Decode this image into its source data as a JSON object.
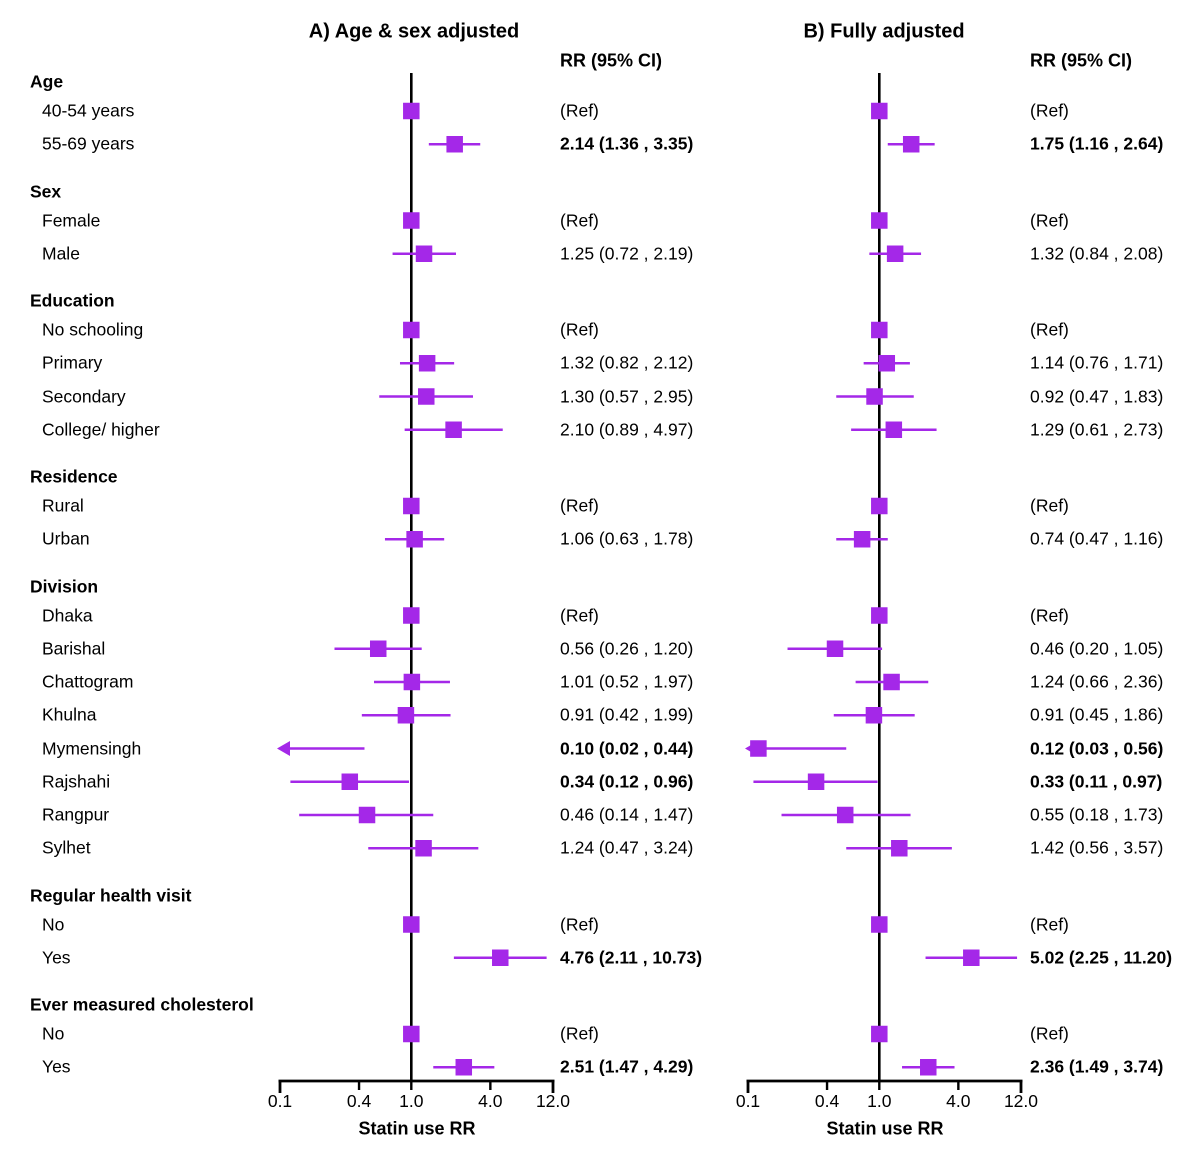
{
  "chart_data": {
    "type": "forest",
    "x_scale": "log",
    "x_range": [
      0.1,
      12.0
    ],
    "accent_color": "#A428E8",
    "axis_color": "#000000",
    "x_ticks": [
      {
        "v": 0.1,
        "label": "0.1"
      },
      {
        "v": 0.4,
        "label": "0.4"
      },
      {
        "v": 1.0,
        "label": "1.0"
      },
      {
        "v": 4.0,
        "label": "4.0"
      },
      {
        "v": 12.0,
        "label": "12.0"
      }
    ],
    "panels": [
      {
        "key": "a",
        "title": "A) Age & sex adjusted",
        "rr_header": "RR (95% CI)",
        "xlabel": "Statin use RR"
      },
      {
        "key": "b",
        "title": "B) Fully adjusted",
        "rr_header": "RR (95% CI)",
        "xlabel": "Statin use RR"
      }
    ],
    "rows": [
      {
        "type": "header",
        "label": "Age"
      },
      {
        "type": "item",
        "label": "40-54 years",
        "a": {
          "text": "(Ref)",
          "ref": true
        },
        "b": {
          "text": "(Ref)",
          "ref": true
        }
      },
      {
        "type": "item",
        "label": "55-69 years",
        "a": {
          "rr": 2.14,
          "lo": 1.36,
          "hi": 3.35,
          "text": "2.14 (1.36 , 3.35)",
          "bold": true
        },
        "b": {
          "rr": 1.75,
          "lo": 1.16,
          "hi": 2.64,
          "text": "1.75 (1.16 , 2.64)",
          "bold": true
        }
      },
      {
        "type": "header",
        "label": "Sex"
      },
      {
        "type": "item",
        "label": "Female",
        "a": {
          "text": "(Ref)",
          "ref": true
        },
        "b": {
          "text": "(Ref)",
          "ref": true
        }
      },
      {
        "type": "item",
        "label": "Male",
        "a": {
          "rr": 1.25,
          "lo": 0.72,
          "hi": 2.19,
          "text": "1.25 (0.72 , 2.19)"
        },
        "b": {
          "rr": 1.32,
          "lo": 0.84,
          "hi": 2.08,
          "text": "1.32 (0.84 , 2.08)"
        }
      },
      {
        "type": "header",
        "label": "Education"
      },
      {
        "type": "item",
        "label": "No schooling",
        "a": {
          "text": "(Ref)",
          "ref": true
        },
        "b": {
          "text": "(Ref)",
          "ref": true
        }
      },
      {
        "type": "item",
        "label": "Primary",
        "a": {
          "rr": 1.32,
          "lo": 0.82,
          "hi": 2.12,
          "text": "1.32 (0.82 , 2.12)"
        },
        "b": {
          "rr": 1.14,
          "lo": 0.76,
          "hi": 1.71,
          "text": "1.14 (0.76 , 1.71)"
        }
      },
      {
        "type": "item",
        "label": "Secondary",
        "a": {
          "rr": 1.3,
          "lo": 0.57,
          "hi": 2.95,
          "text": "1.30 (0.57 , 2.95)"
        },
        "b": {
          "rr": 0.92,
          "lo": 0.47,
          "hi": 1.83,
          "text": "0.92 (0.47 , 1.83)"
        }
      },
      {
        "type": "item",
        "label": "College/ higher",
        "a": {
          "rr": 2.1,
          "lo": 0.89,
          "hi": 4.97,
          "text": "2.10 (0.89 , 4.97)"
        },
        "b": {
          "rr": 1.29,
          "lo": 0.61,
          "hi": 2.73,
          "text": "1.29 (0.61 , 2.73)"
        }
      },
      {
        "type": "header",
        "label": "Residence"
      },
      {
        "type": "item",
        "label": "Rural",
        "a": {
          "text": "(Ref)",
          "ref": true
        },
        "b": {
          "text": "(Ref)",
          "ref": true
        }
      },
      {
        "type": "item",
        "label": "Urban",
        "a": {
          "rr": 1.06,
          "lo": 0.63,
          "hi": 1.78,
          "text": "1.06 (0.63 , 1.78)"
        },
        "b": {
          "rr": 0.74,
          "lo": 0.47,
          "hi": 1.16,
          "text": "0.74 (0.47 , 1.16)"
        }
      },
      {
        "type": "header",
        "label": "Division"
      },
      {
        "type": "item",
        "label": "Dhaka",
        "a": {
          "text": "(Ref)",
          "ref": true
        },
        "b": {
          "text": "(Ref)",
          "ref": true
        }
      },
      {
        "type": "item",
        "label": "Barishal",
        "a": {
          "rr": 0.56,
          "lo": 0.26,
          "hi": 1.2,
          "text": "0.56 (0.26 , 1.20)"
        },
        "b": {
          "rr": 0.46,
          "lo": 0.2,
          "hi": 1.05,
          "text": "0.46 (0.20 , 1.05)"
        }
      },
      {
        "type": "item",
        "label": "Chattogram",
        "a": {
          "rr": 1.01,
          "lo": 0.52,
          "hi": 1.97,
          "text": "1.01 (0.52 , 1.97)"
        },
        "b": {
          "rr": 1.24,
          "lo": 0.66,
          "hi": 2.36,
          "text": "1.24 (0.66 , 2.36)"
        }
      },
      {
        "type": "item",
        "label": "Khulna",
        "a": {
          "rr": 0.91,
          "lo": 0.42,
          "hi": 1.99,
          "text": "0.91 (0.42 , 1.99)"
        },
        "b": {
          "rr": 0.91,
          "lo": 0.45,
          "hi": 1.86,
          "text": "0.91 (0.45 , 1.86)"
        }
      },
      {
        "type": "item",
        "label": "Mymensingh",
        "a": {
          "rr": 0.1,
          "lo": 0.02,
          "hi": 0.44,
          "text": "0.10 (0.02 , 0.44)",
          "bold": true,
          "arrow_left": true
        },
        "b": {
          "rr": 0.12,
          "lo": 0.03,
          "hi": 0.56,
          "text": "0.12 (0.03 , 0.56)",
          "bold": true,
          "arrow_left": true
        }
      },
      {
        "type": "item",
        "label": "Rajshahi",
        "a": {
          "rr": 0.34,
          "lo": 0.12,
          "hi": 0.96,
          "text": "0.34 (0.12 , 0.96)",
          "bold": true
        },
        "b": {
          "rr": 0.33,
          "lo": 0.11,
          "hi": 0.97,
          "text": "0.33 (0.11 , 0.97)",
          "bold": true
        }
      },
      {
        "type": "item",
        "label": "Rangpur",
        "a": {
          "rr": 0.46,
          "lo": 0.14,
          "hi": 1.47,
          "text": "0.46 (0.14 , 1.47)"
        },
        "b": {
          "rr": 0.55,
          "lo": 0.18,
          "hi": 1.73,
          "text": "0.55 (0.18 , 1.73)"
        }
      },
      {
        "type": "item",
        "label": "Sylhet",
        "a": {
          "rr": 1.24,
          "lo": 0.47,
          "hi": 3.24,
          "text": "1.24 (0.47 , 3.24)"
        },
        "b": {
          "rr": 1.42,
          "lo": 0.56,
          "hi": 3.57,
          "text": "1.42 (0.56 , 3.57)"
        }
      },
      {
        "type": "header",
        "label": "Regular health visit"
      },
      {
        "type": "item",
        "label": "No",
        "a": {
          "text": "(Ref)",
          "ref": true
        },
        "b": {
          "text": "(Ref)",
          "ref": true
        }
      },
      {
        "type": "item",
        "label": "Yes",
        "a": {
          "rr": 4.76,
          "lo": 2.11,
          "hi": 10.73,
          "text": "4.76 (2.11 , 10.73)",
          "bold": true
        },
        "b": {
          "rr": 5.02,
          "lo": 2.25,
          "hi": 11.2,
          "text": "5.02 (2.25 , 11.20)",
          "bold": true
        }
      },
      {
        "type": "header",
        "label": "Ever measured cholesterol"
      },
      {
        "type": "item",
        "label": "No",
        "a": {
          "text": "(Ref)",
          "ref": true
        },
        "b": {
          "text": "(Ref)",
          "ref": true
        }
      },
      {
        "type": "item",
        "label": "Yes",
        "a": {
          "rr": 2.51,
          "lo": 1.47,
          "hi": 4.29,
          "text": "2.51 (1.47 , 4.29)",
          "bold": true
        },
        "b": {
          "rr": 2.36,
          "lo": 1.49,
          "hi": 3.74,
          "text": "2.36 (1.49 , 3.74)",
          "bold": true
        }
      }
    ]
  }
}
